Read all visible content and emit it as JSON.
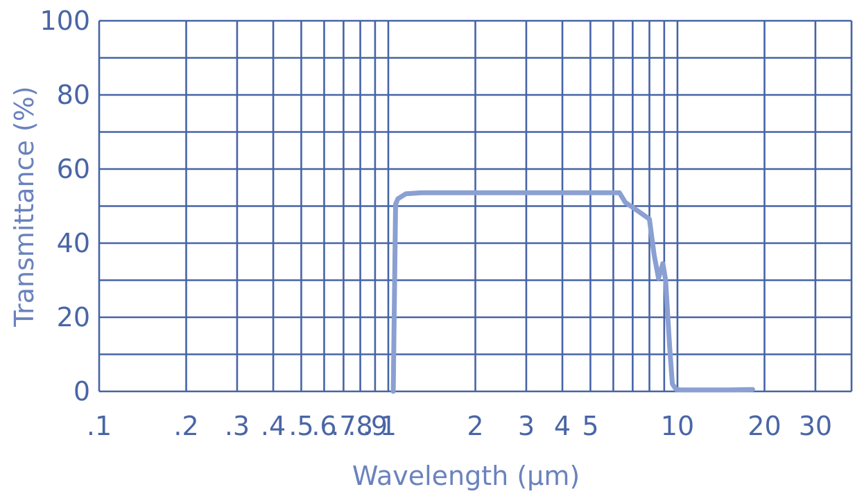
{
  "chart_data": {
    "type": "line",
    "title": "",
    "xlabel": "Wavelength (µm)",
    "ylabel": "Transmittance (%)",
    "xscale": "log",
    "xlim": [
      0.1,
      40
    ],
    "ylim": [
      0,
      100
    ],
    "grid": true,
    "x_ticks": [
      0.1,
      0.2,
      0.3,
      0.4,
      0.5,
      0.6,
      0.7,
      0.8,
      0.9,
      1,
      2,
      3,
      4,
      5,
      10,
      20,
      30
    ],
    "x_tick_labels": [
      ".1",
      ".2",
      ".3",
      ".4",
      ".5",
      ".6",
      ".7",
      ".8",
      ".9",
      "1",
      "2",
      "3",
      "4",
      "5",
      "10",
      "20",
      "30"
    ],
    "x_gridlines": [
      0.1,
      0.2,
      0.3,
      0.4,
      0.5,
      0.6,
      0.7,
      0.8,
      0.9,
      1,
      2,
      3,
      4,
      5,
      6,
      7,
      8,
      9,
      10,
      20,
      30,
      40
    ],
    "y_ticks": [
      0,
      20,
      40,
      60,
      80,
      100
    ],
    "y_tick_labels": [
      "0",
      "20",
      "40",
      "60",
      "80",
      "100"
    ],
    "y_gridlines": [
      0,
      10,
      20,
      30,
      40,
      50,
      60,
      70,
      80,
      90,
      100
    ],
    "series": [
      {
        "name": "",
        "x": [
          1.04,
          1.06,
          1.08,
          1.15,
          1.3,
          2,
          3,
          4,
          5.5,
          6.3,
          6.6,
          7.2,
          8.0,
          8.3,
          8.6,
          8.9,
          9.1,
          9.4,
          9.6,
          9.9,
          10.3,
          12,
          15,
          18.2
        ],
        "y": [
          0,
          50.5,
          52,
          53.3,
          53.6,
          53.6,
          53.6,
          53.6,
          53.6,
          53.6,
          51,
          49,
          46.5,
          37,
          30.5,
          34.5,
          30,
          12,
          2,
          0.5,
          0.4,
          0.4,
          0.4,
          0.5
        ],
        "color": "#8aa0d2"
      }
    ],
    "colors": {
      "grid": "#4664a6",
      "tick_text": "#4a65a6",
      "axis_title": "#6a82bd",
      "line": "#8aa0d2"
    }
  }
}
